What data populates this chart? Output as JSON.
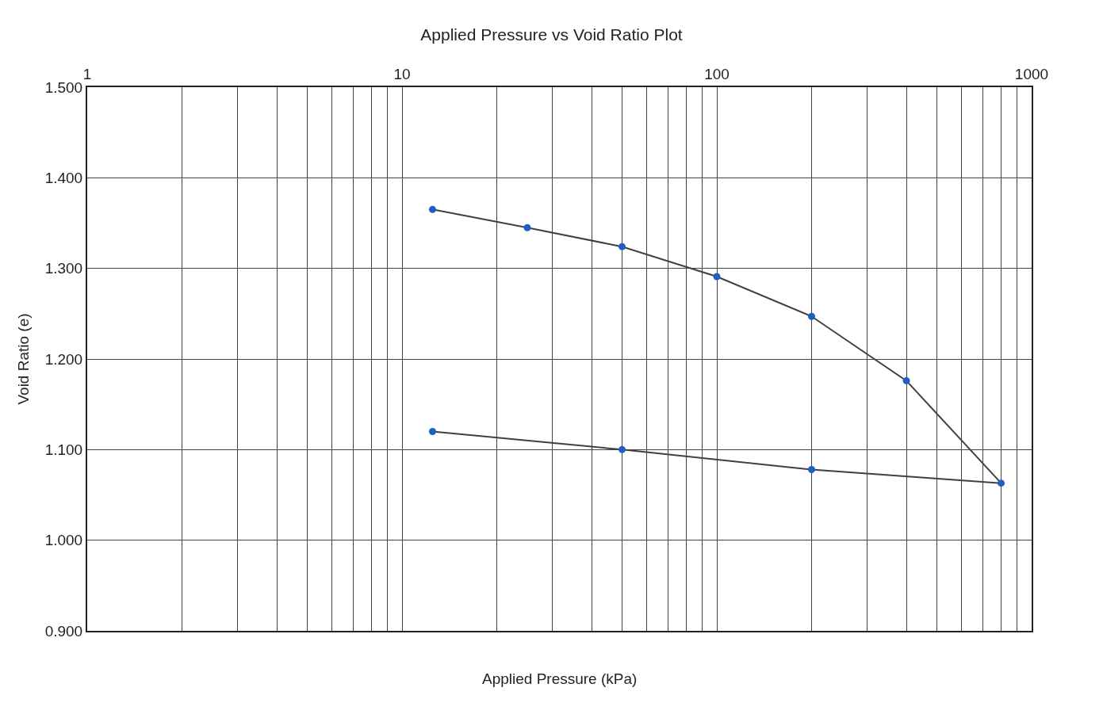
{
  "chart_data": {
    "type": "line",
    "title": "Applied Pressure vs Void Ratio Plot",
    "xlabel": "Applied Pressure (kPa)",
    "ylabel": "Void Ratio (e)",
    "x": [
      12.5,
      25,
      50,
      100,
      200,
      400,
      800,
      200,
      50,
      12.5
    ],
    "series": [
      {
        "color": "#404040",
        "colors": [
          "#1f5fc4",
          "#1f5fc4",
          "#1f5fc4",
          "#1f5fc4",
          "#1f5fc4",
          "#1f5fc4",
          "#1f5fc4",
          "#1f5fc4",
          "#1f5fc4",
          "#1f5fc4"
        ],
        "values": [
          1.365,
          1.345,
          1.324,
          1.291,
          1.247,
          1.176,
          1.063,
          1.078,
          1.1,
          1.12
        ]
      }
    ],
    "log": "x",
    "xlim": [
      1,
      1000
    ],
    "xticks": [
      1,
      10,
      100,
      1000
    ],
    "ylim": [
      0.9,
      1.5
    ],
    "yticks": [
      {
        "value": 0.9,
        "label": "0.900"
      },
      {
        "value": 1.0,
        "label": "1.000"
      },
      {
        "value": 1.1,
        "label": "1.100"
      },
      {
        "value": 1.2,
        "label": "1.200"
      },
      {
        "value": 1.3,
        "label": "1.300"
      },
      {
        "value": 1.4,
        "label": "1.400"
      },
      {
        "value": 1.5,
        "label": "1.500"
      }
    ],
    "grid": true,
    "legend": false,
    "marker": "circle",
    "line_style": "solid"
  }
}
